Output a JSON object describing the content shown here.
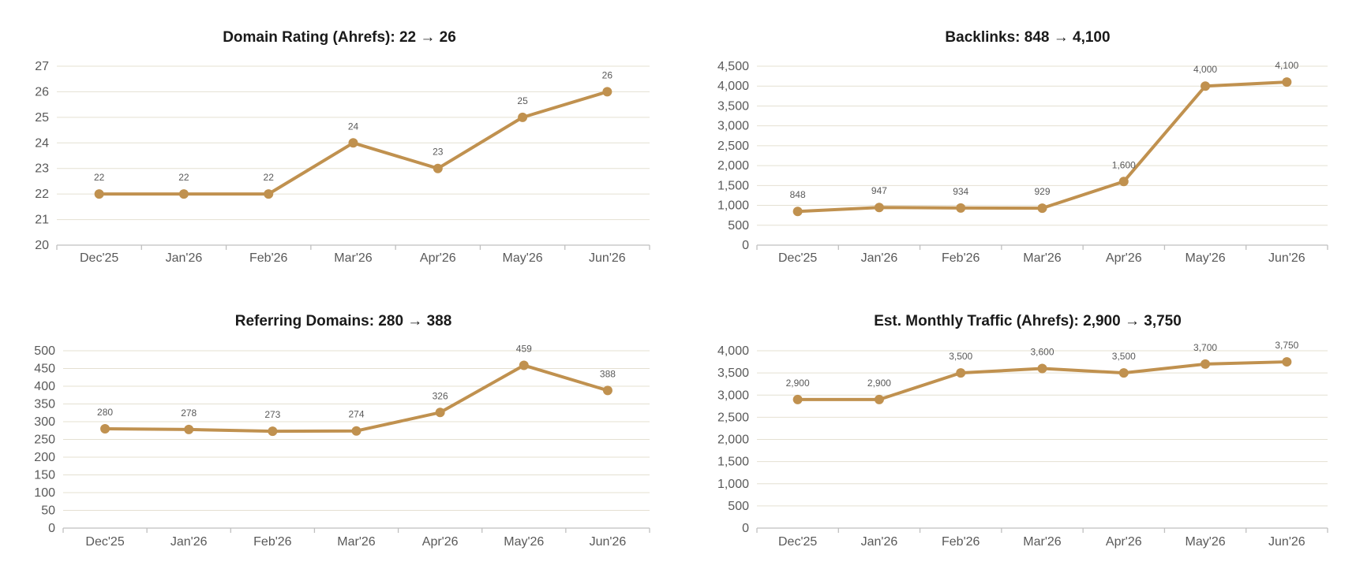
{
  "colors": {
    "series": "#c0914f",
    "grid": "#e4e0d2",
    "axis": "#bfbfbf",
    "text": "#595959"
  },
  "chart_data": [
    {
      "type": "line",
      "title": "Domain Rating (Ahrefs): 22 → 26",
      "categories": [
        "Dec'25",
        "Jan'26",
        "Feb'26",
        "Mar'26",
        "Apr'26",
        "May'26",
        "Jun'26"
      ],
      "values": [
        22,
        22,
        22,
        24,
        23,
        25,
        26
      ],
      "data_labels": [
        "22",
        "22",
        "22",
        "24",
        "23",
        "25",
        "26"
      ],
      "ylim": [
        20,
        27
      ],
      "yticks": [
        "20",
        "21",
        "22",
        "23",
        "24",
        "25",
        "26",
        "27"
      ],
      "grid": true,
      "legend": "none"
    },
    {
      "type": "line",
      "title": "Backlinks: 848 → 4,100",
      "categories": [
        "Dec'25",
        "Jan'26",
        "Feb'26",
        "Mar'26",
        "Apr'26",
        "May'26",
        "Jun'26"
      ],
      "values": [
        848,
        947,
        934,
        929,
        1600,
        4000,
        4100
      ],
      "data_labels": [
        "848",
        "947",
        "934",
        "929",
        "1,600",
        "4,000",
        "4,100"
      ],
      "ylim": [
        0,
        4500
      ],
      "yticks": [
        "0",
        "500",
        "1,000",
        "1,500",
        "2,000",
        "2,500",
        "3,000",
        "3,500",
        "4,000",
        "4,500"
      ],
      "grid": true,
      "legend": "none"
    },
    {
      "type": "line",
      "title": "Referring Domains: 280 → 388",
      "categories": [
        "Dec'25",
        "Jan'26",
        "Feb'26",
        "Mar'26",
        "Apr'26",
        "May'26",
        "Jun'26"
      ],
      "values": [
        280,
        278,
        273,
        274,
        326,
        459,
        388
      ],
      "data_labels": [
        "280",
        "278",
        "273",
        "274",
        "326",
        "459",
        "388"
      ],
      "ylim": [
        0,
        500
      ],
      "yticks": [
        "0",
        "50",
        "100",
        "150",
        "200",
        "250",
        "300",
        "350",
        "400",
        "450",
        "500"
      ],
      "grid": true,
      "legend": "none"
    },
    {
      "type": "line",
      "title": "Est. Monthly Traffic (Ahrefs): 2,900 → 3,750",
      "categories": [
        "Dec'25",
        "Jan'26",
        "Feb'26",
        "Mar'26",
        "Apr'26",
        "May'26",
        "Jun'26"
      ],
      "values": [
        2900,
        2900,
        3500,
        3600,
        3500,
        3700,
        3750
      ],
      "data_labels": [
        "2,900",
        "2,900",
        "3,500",
        "3,600",
        "3,500",
        "3,700",
        "3,750"
      ],
      "ylim": [
        0,
        4000
      ],
      "yticks": [
        "0",
        "500",
        "1,000",
        "1,500",
        "2,000",
        "2,500",
        "3,000",
        "3,500",
        "4,000"
      ],
      "grid": true,
      "legend": "none"
    }
  ]
}
